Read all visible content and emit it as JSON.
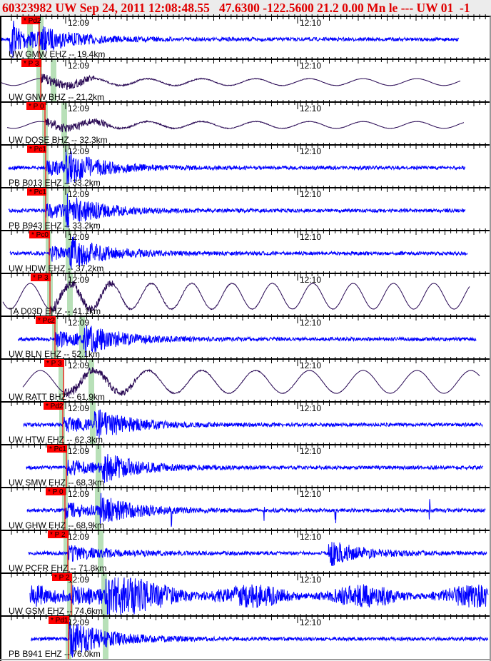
{
  "header": {
    "title": "60323982 UW Sep 24, 2011 12:08:48.55   47.6300 -122.5600 21.2 0.00 Mn le --- UW 01  -1"
  },
  "chart_data": {
    "type": "line",
    "title": "60323982 UW Sep 24, 2011 12:08:48.55   47.6300 -122.5600 21.2 0.00 Mn le --- UW 01  -1",
    "time_ticks": [
      "12:09",
      "12:10"
    ],
    "colors": {
      "short_period": "#0000ff",
      "broadband": "#2a0a55",
      "pick": "#ff0000",
      "window": "#b8e0b8"
    },
    "series": [
      {
        "name": "UW GMW EHZ -- 19.4km",
        "pick": "* Pd2",
        "kind": "short_period"
      },
      {
        "name": "UW GNW BHZ -- 21.2km",
        "pick": "* P 3",
        "kind": "broadband"
      },
      {
        "name": "UW DOSE BHZ -- 32.3km",
        "pick": "* P 0",
        "kind": "broadband"
      },
      {
        "name": "PB B013 EHZ -- 33.2km",
        "pick": "* Pc1",
        "kind": "short_period"
      },
      {
        "name": "PB B943 EHZ -- 33.2km",
        "pick": "* Pc1",
        "kind": "short_period"
      },
      {
        "name": "UW HDW EHZ -- 37.2km",
        "pick": "* Pc0",
        "kind": "short_period"
      },
      {
        "name": "TA D03D EHZ -- 41.1km",
        "pick": "* P 3",
        "kind": "broadband"
      },
      {
        "name": "UW BLN EHZ -- 52.1km",
        "pick": "* Pc2",
        "kind": "short_period"
      },
      {
        "name": "UW RATT BHZ -- 61.9km",
        "pick": "* P 3",
        "kind": "broadband"
      },
      {
        "name": "UW HTW EHZ -- 62.3km",
        "pick": "* Pd2",
        "kind": "short_period"
      },
      {
        "name": "UW SMW EHZ -- 68.3km",
        "pick": "* Pc1",
        "kind": "short_period"
      },
      {
        "name": "UW GHW EHZ -- 68.9km",
        "pick": "* P 0",
        "kind": "short_period"
      },
      {
        "name": "UW PCFR EHZ -- 71.8km",
        "pick": "* P 2",
        "kind": "short_period"
      },
      {
        "name": "UW GSM EHZ -- 74.6km",
        "pick": "* P 2",
        "kind": "short_period"
      },
      {
        "name": "PB B941 EHZ -- 76.0km",
        "pick": "* Pd1",
        "kind": "short_period"
      }
    ]
  }
}
